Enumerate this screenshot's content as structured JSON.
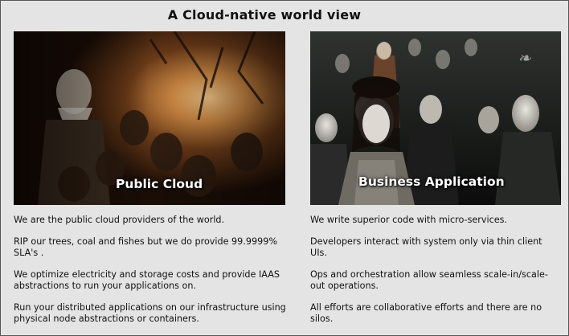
{
  "title": "A Cloud-native world view",
  "left": {
    "caption": "Public Cloud",
    "paragraphs": [
      "We are the public cloud providers of the world.",
      "RIP our trees, coal and fishes but we do provide 99.9999% SLA's .",
      "We optimize electricity and storage costs and provide IAAS abstractions to run your applications on.",
      "Run your distributed applications on our infrastructure using physical node abstractions or containers."
    ]
  },
  "right": {
    "caption": "Business Application",
    "paragraphs": [
      "We write superior code with micro-services.",
      "Developers interact with system only via thin client UIs.",
      "Ops and orchestration allow seamless scale-in/scale-out operations.",
      "All efforts are collaborative efforts and there are no silos."
    ]
  }
}
